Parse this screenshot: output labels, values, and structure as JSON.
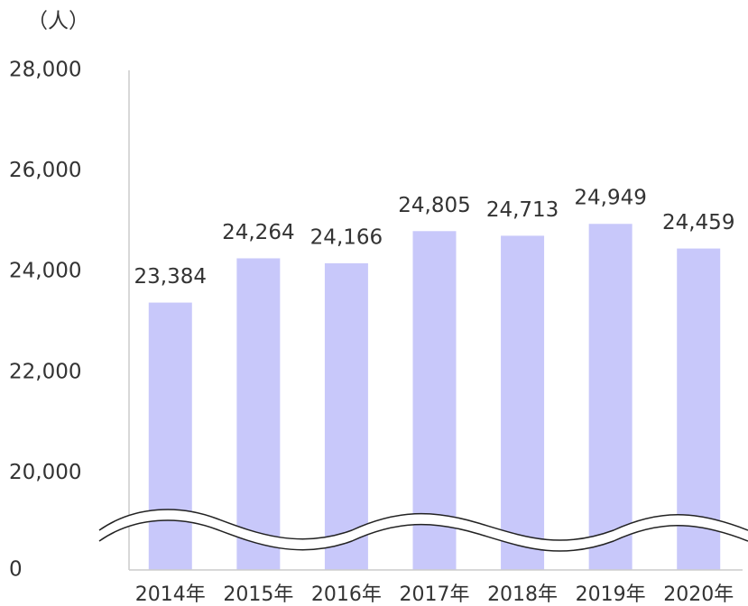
{
  "chart_data": {
    "type": "bar",
    "unit_label": "（人）",
    "categories": [
      "2014年",
      "2015年",
      "2016年",
      "2017年",
      "2018年",
      "2019年",
      "2020年"
    ],
    "values": [
      23384,
      24264,
      24166,
      24805,
      24713,
      24949,
      24459
    ],
    "value_labels": [
      "23,384",
      "24,264",
      "24,166",
      "24,805",
      "24,713",
      "24,949",
      "24,459"
    ],
    "color": "#c8c8fa",
    "ylim": [
      18000,
      28000
    ],
    "yticks": [
      0,
      {
        "value": 20000,
        "label": "20,000"
      },
      {
        "value": 22000,
        "label": "22,000"
      },
      {
        "value": 24000,
        "label": "24,000"
      },
      {
        "value": 26000,
        "label": "26,000"
      },
      {
        "value": 28000,
        "label": "28,000"
      }
    ],
    "axis_break": true
  }
}
